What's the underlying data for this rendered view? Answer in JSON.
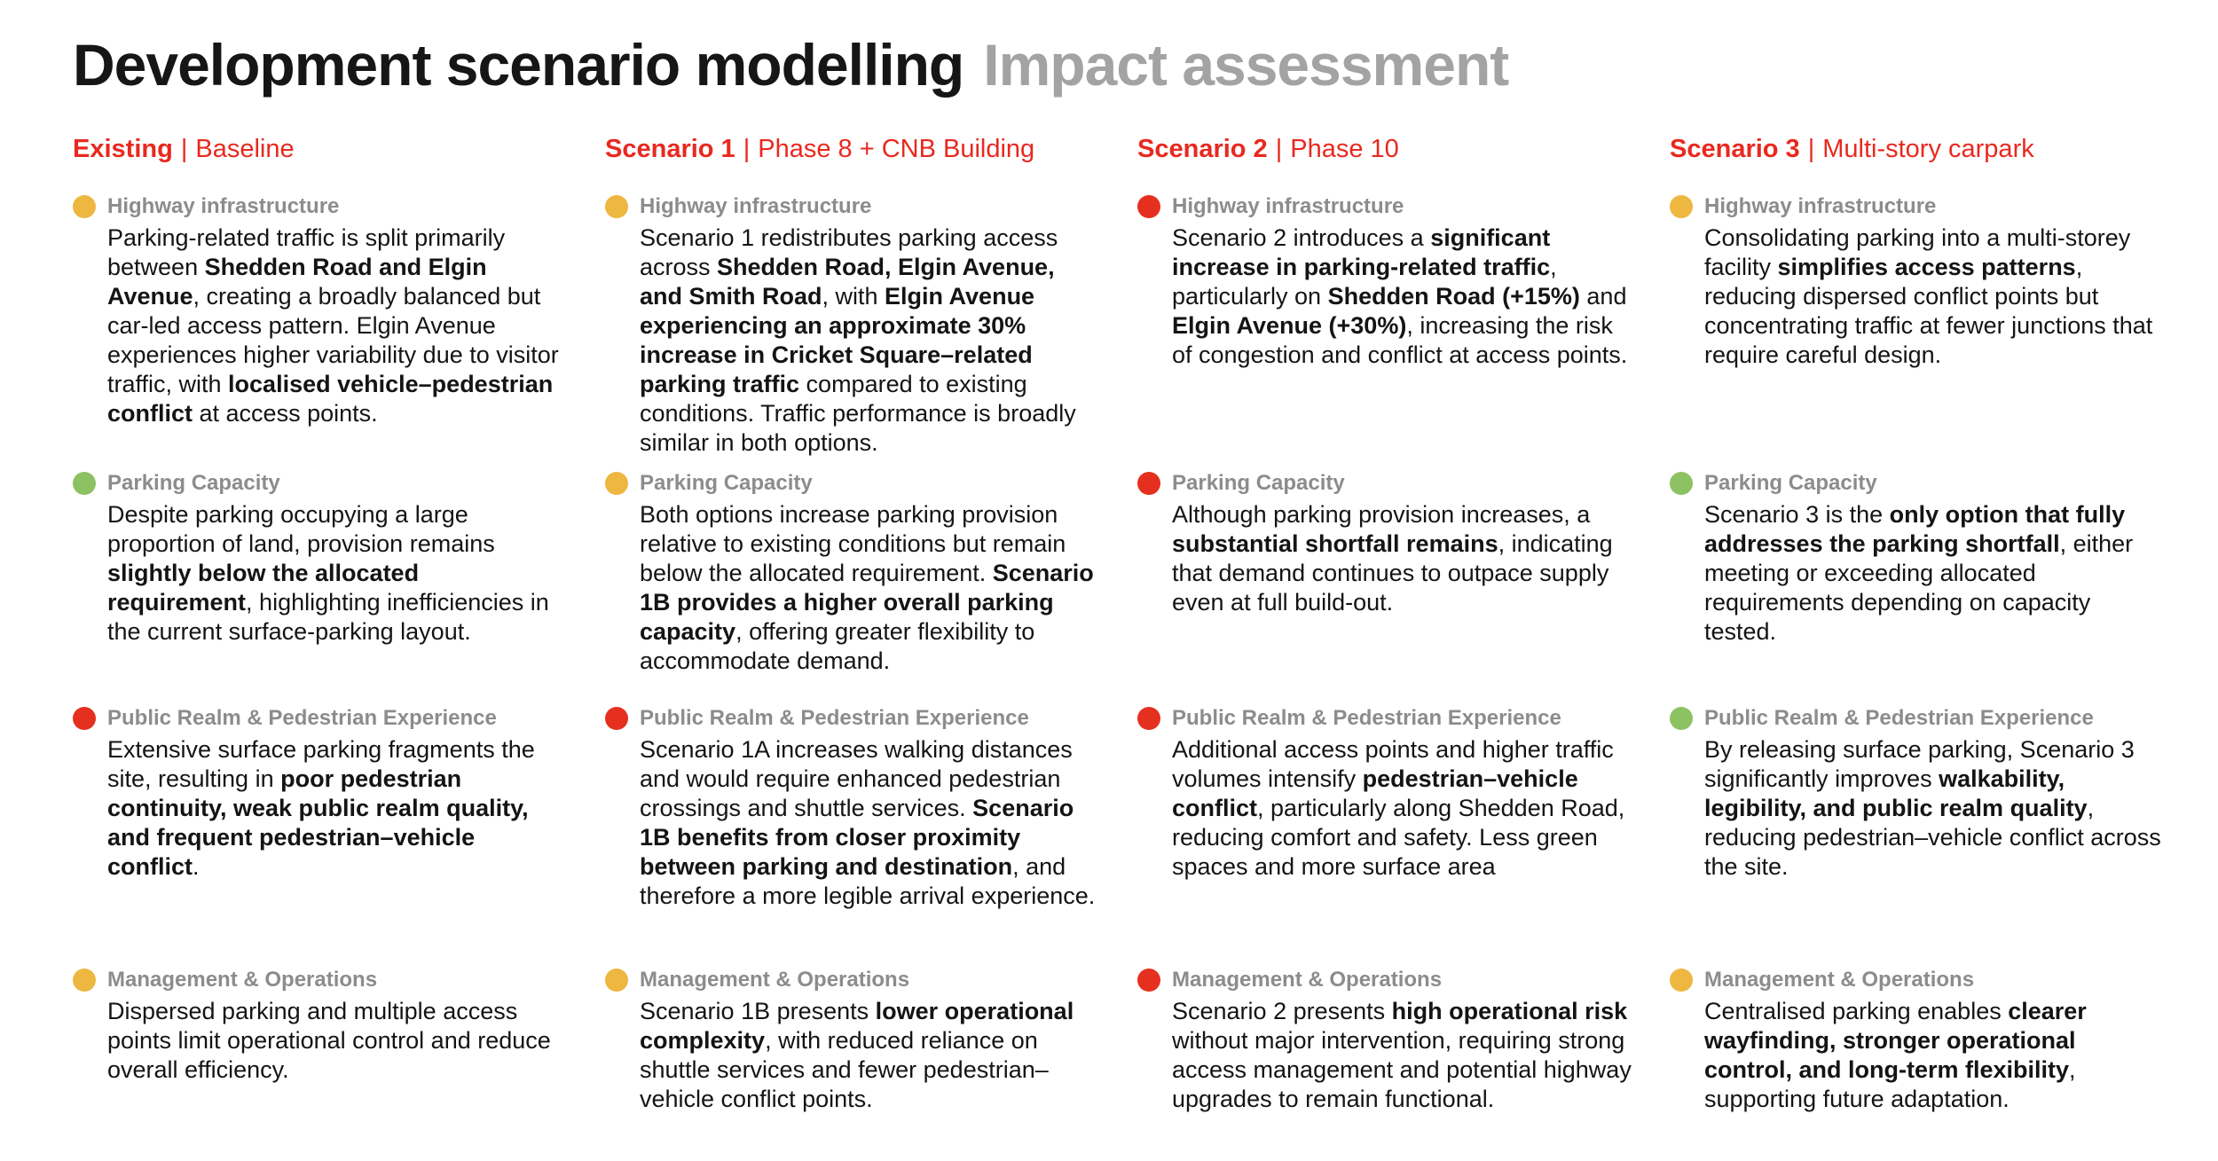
{
  "title": {
    "primary": "Development scenario modelling",
    "secondary": "Impact assessment"
  },
  "header_separator": "|",
  "colors": {
    "header_red": "#e8291f",
    "amber": "#edb740",
    "green": "#8dc262",
    "red": "#e5301f",
    "category_gray": "#8c8c8c",
    "title_gray": "#a3a3a3",
    "body_black": "#141414"
  },
  "columns": [
    {
      "name": "Existing",
      "subtitle": "Baseline",
      "cells": [
        {
          "category": "Highway infrastructure",
          "status": "amber",
          "segments": [
            {
              "t": "Parking-related traffic is split primarily between ",
              "b": false
            },
            {
              "t": "Shedden Road and Elgin Avenue",
              "b": true
            },
            {
              "t": ", creating a broadly balanced but car-led access pattern. Elgin Avenue experiences higher variability due to visitor traffic, with ",
              "b": false
            },
            {
              "t": "localised vehicle–pedestrian conflict",
              "b": true
            },
            {
              "t": " at access points.",
              "b": false
            }
          ]
        },
        {
          "category": "Parking Capacity",
          "status": "green",
          "segments": [
            {
              "t": "Despite parking occupying a large proportion of land, provision remains ",
              "b": false
            },
            {
              "t": "slightly below the allocated requirement",
              "b": true
            },
            {
              "t": ", highlighting inefficiencies in the current surface-parking layout.",
              "b": false
            }
          ]
        },
        {
          "category": "Public Realm & Pedestrian Experience",
          "status": "red",
          "segments": [
            {
              "t": "Extensive surface parking fragments the site, resulting in ",
              "b": false
            },
            {
              "t": "poor pedestrian continuity, weak public realm quality, and frequent pedestrian–vehicle conflict",
              "b": true
            },
            {
              "t": ".",
              "b": false
            }
          ]
        },
        {
          "category": "Management & Operations",
          "status": "amber",
          "segments": [
            {
              "t": "Dispersed parking and multiple access points limit operational control and reduce overall efficiency.",
              "b": false
            }
          ]
        }
      ]
    },
    {
      "name": "Scenario 1",
      "subtitle": "Phase 8 + CNB Building",
      "cells": [
        {
          "category": "Highway infrastructure",
          "status": "amber",
          "segments": [
            {
              "t": "Scenario 1 redistributes parking access across ",
              "b": false
            },
            {
              "t": "Shedden Road, Elgin Avenue, and Smith Road",
              "b": true
            },
            {
              "t": ", with ",
              "b": false
            },
            {
              "t": "Elgin Avenue experiencing an approximate 30% increase in Cricket Square–related parking traffic",
              "b": true
            },
            {
              "t": " compared to existing conditions. Traffic performance is broadly similar in both options.",
              "b": false
            }
          ]
        },
        {
          "category": "Parking Capacity",
          "status": "amber",
          "segments": [
            {
              "t": "Both options increase parking provision relative to existing conditions but remain below the allocated requirement. ",
              "b": false
            },
            {
              "t": "Scenario 1B provides a higher overall parking capacity",
              "b": true
            },
            {
              "t": ", offering greater flexibility to accommodate demand.",
              "b": false
            }
          ]
        },
        {
          "category": "Public Realm & Pedestrian Experience",
          "status": "red",
          "segments": [
            {
              "t": "Scenario 1A increases walking distances and would require enhanced pedestrian crossings and shuttle services. ",
              "b": false
            },
            {
              "t": "Scenario 1B benefits from closer proximity between parking and destination",
              "b": true
            },
            {
              "t": ", and therefore a more legible arrival experience.",
              "b": false
            }
          ]
        },
        {
          "category": "Management & Operations",
          "status": "amber",
          "segments": [
            {
              "t": "Scenario 1B presents ",
              "b": false
            },
            {
              "t": "lower operational complexity",
              "b": true
            },
            {
              "t": ", with reduced reliance on shuttle services and fewer pedestrian–vehicle conflict points.",
              "b": false
            }
          ]
        }
      ]
    },
    {
      "name": "Scenario 2",
      "subtitle": "Phase 10",
      "cells": [
        {
          "category": "Highway infrastructure",
          "status": "red",
          "segments": [
            {
              "t": "Scenario 2 introduces a ",
              "b": false
            },
            {
              "t": "significant increase in parking-related traffic",
              "b": true
            },
            {
              "t": ", particularly on ",
              "b": false
            },
            {
              "t": "Shedden Road (+15%)",
              "b": true
            },
            {
              "t": " and ",
              "b": false
            },
            {
              "t": "Elgin Avenue (+30%)",
              "b": true
            },
            {
              "t": ", increasing the risk of congestion and conflict at access points.",
              "b": false
            }
          ]
        },
        {
          "category": "Parking Capacity",
          "status": "red",
          "segments": [
            {
              "t": "Although parking provision increases, a ",
              "b": false
            },
            {
              "t": "substantial shortfall remains",
              "b": true
            },
            {
              "t": ", indicating that demand continues to outpace supply even at full build-out.",
              "b": false
            }
          ]
        },
        {
          "category": "Public Realm & Pedestrian Experience",
          "status": "red",
          "segments": [
            {
              "t": "Additional access points and higher traffic volumes intensify ",
              "b": false
            },
            {
              "t": "pedestrian–vehicle conflict",
              "b": true
            },
            {
              "t": ", particularly along Shedden Road, reducing comfort and safety. Less green spaces and more surface area",
              "b": false
            }
          ]
        },
        {
          "category": "Management & Operations",
          "status": "red",
          "segments": [
            {
              "t": "Scenario 2 presents ",
              "b": false
            },
            {
              "t": "high operational risk",
              "b": true
            },
            {
              "t": " without major intervention, requiring strong access management and potential highway upgrades to remain functional.",
              "b": false
            }
          ]
        }
      ]
    },
    {
      "name": "Scenario 3",
      "subtitle": "Multi-story carpark",
      "cells": [
        {
          "category": "Highway infrastructure",
          "status": "amber",
          "segments": [
            {
              "t": "Consolidating parking into a multi-storey facility ",
              "b": false
            },
            {
              "t": "simplifies access patterns",
              "b": true
            },
            {
              "t": ", reducing dispersed conflict points but concentrating traffic at fewer junctions that require careful design.",
              "b": false
            }
          ]
        },
        {
          "category": "Parking Capacity",
          "status": "green",
          "segments": [
            {
              "t": "Scenario 3 is the ",
              "b": false
            },
            {
              "t": "only option that fully addresses the parking shortfall",
              "b": true
            },
            {
              "t": ", either meeting or exceeding allocated requirements depending on capacity tested.",
              "b": false
            }
          ]
        },
        {
          "category": "Public Realm & Pedestrian Experience",
          "status": "green",
          "segments": [
            {
              "t": "By releasing surface parking, Scenario 3 significantly improves ",
              "b": false
            },
            {
              "t": "walkability, legibility, and public realm quality",
              "b": true
            },
            {
              "t": ", reducing pedestrian–vehicle conflict across the site.",
              "b": false
            }
          ]
        },
        {
          "category": "Management & Operations",
          "status": "amber",
          "segments": [
            {
              "t": "Centralised parking enables ",
              "b": false
            },
            {
              "t": "clearer wayfinding, stronger operational control, and long-term flexibility",
              "b": true
            },
            {
              "t": ", supporting future adaptation.",
              "b": false
            }
          ]
        }
      ]
    }
  ]
}
